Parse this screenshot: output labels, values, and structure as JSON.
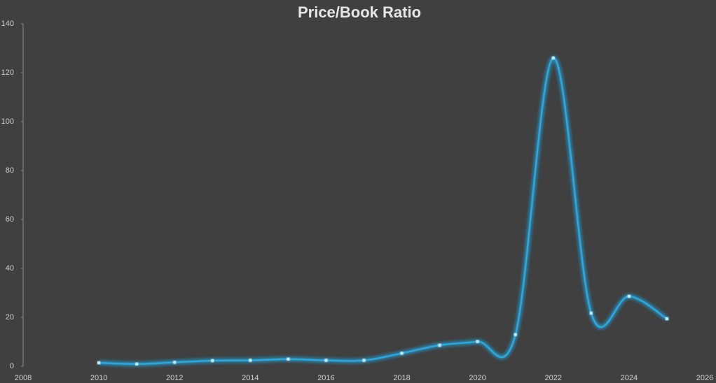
{
  "chart_data": {
    "type": "line",
    "title": "Price/Book Ratio",
    "x": [
      2010,
      2011,
      2012,
      2013,
      2014,
      2015,
      2016,
      2017,
      2018,
      2019,
      2020,
      2021,
      2022,
      2023,
      2024,
      2025
    ],
    "values": [
      1.4,
      0.9,
      1.6,
      2.3,
      2.4,
      2.9,
      2.4,
      2.4,
      5.3,
      8.6,
      10.1,
      12.9,
      126,
      21.7,
      28.6,
      19.4
    ],
    "color": "#29a8e0",
    "xlim": [
      2008,
      2026
    ],
    "xticks": [
      2008,
      2010,
      2012,
      2014,
      2016,
      2018,
      2020,
      2022,
      2024,
      2026
    ],
    "ylim": [
      0,
      140
    ],
    "yticks": [
      0,
      20,
      40,
      60,
      80,
      100,
      120,
      140
    ],
    "grid": false,
    "smooth": true
  }
}
